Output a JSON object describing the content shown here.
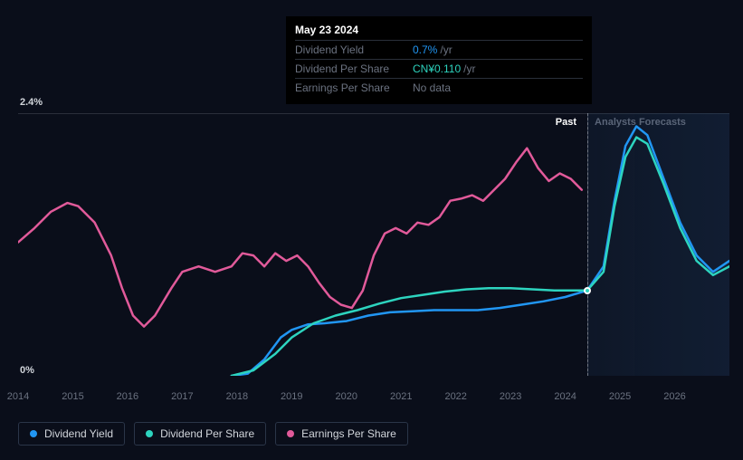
{
  "tooltip": {
    "date": "May 23 2024",
    "rows": [
      {
        "label": "Dividend Yield",
        "value": "0.7%",
        "unit": "/yr",
        "color": "#2196f3"
      },
      {
        "label": "Dividend Per Share",
        "value": "CN¥0.110",
        "unit": "/yr",
        "color": "#2dd4bf"
      },
      {
        "label": "Earnings Per Share",
        "value": "No data",
        "unit": "",
        "color": "#6b7280"
      }
    ]
  },
  "chart": {
    "type": "line",
    "background_color": "#0a0e1a",
    "grid_color": "#2a2f3a",
    "y_axis": {
      "min": 0,
      "max": 2.4,
      "labels": [
        "2.4%",
        "0%"
      ],
      "label_color": "#d1d5db",
      "label_fontsize": 11
    },
    "x_axis": {
      "min": 2014,
      "max": 2027,
      "ticks": [
        2014,
        2015,
        2016,
        2017,
        2018,
        2019,
        2020,
        2021,
        2022,
        2023,
        2024,
        2025,
        2026
      ],
      "label_color": "#6b7280",
      "label_fontsize": 11
    },
    "regions": {
      "past": {
        "label": "Past",
        "end_x": 2024.4,
        "label_color": "#ffffff"
      },
      "forecast": {
        "label": "Analysts Forecasts",
        "start_x": 2024.4,
        "label_color": "#5a6578",
        "fill": "rgba(30,58,95,0.28)"
      }
    },
    "hover": {
      "x": 2024.4,
      "dot_y": 0.78,
      "dot_color": "#2dd4bf"
    },
    "line_width": 2.5,
    "series": [
      {
        "name": "Dividend Yield",
        "color": "#2196f3",
        "points": [
          [
            2017.9,
            0
          ],
          [
            2018.2,
            0.02
          ],
          [
            2018.5,
            0.15
          ],
          [
            2018.8,
            0.35
          ],
          [
            2019.0,
            0.42
          ],
          [
            2019.3,
            0.47
          ],
          [
            2019.6,
            0.48
          ],
          [
            2020.0,
            0.5
          ],
          [
            2020.4,
            0.55
          ],
          [
            2020.8,
            0.58
          ],
          [
            2021.2,
            0.59
          ],
          [
            2021.6,
            0.6
          ],
          [
            2022.0,
            0.6
          ],
          [
            2022.4,
            0.6
          ],
          [
            2022.8,
            0.62
          ],
          [
            2023.2,
            0.65
          ],
          [
            2023.6,
            0.68
          ],
          [
            2024.0,
            0.72
          ],
          [
            2024.4,
            0.78
          ],
          [
            2024.7,
            1.0
          ],
          [
            2024.9,
            1.6
          ],
          [
            2025.1,
            2.1
          ],
          [
            2025.3,
            2.28
          ],
          [
            2025.5,
            2.2
          ],
          [
            2025.8,
            1.8
          ],
          [
            2026.1,
            1.4
          ],
          [
            2026.4,
            1.1
          ],
          [
            2026.7,
            0.95
          ],
          [
            2027.0,
            1.05
          ]
        ]
      },
      {
        "name": "Dividend Per Share",
        "color": "#2dd4bf",
        "points": [
          [
            2017.9,
            0
          ],
          [
            2018.3,
            0.05
          ],
          [
            2018.7,
            0.2
          ],
          [
            2019.0,
            0.35
          ],
          [
            2019.4,
            0.48
          ],
          [
            2019.8,
            0.55
          ],
          [
            2020.2,
            0.6
          ],
          [
            2020.6,
            0.66
          ],
          [
            2021.0,
            0.71
          ],
          [
            2021.4,
            0.74
          ],
          [
            2021.8,
            0.77
          ],
          [
            2022.2,
            0.79
          ],
          [
            2022.6,
            0.8
          ],
          [
            2023.0,
            0.8
          ],
          [
            2023.4,
            0.79
          ],
          [
            2023.8,
            0.78
          ],
          [
            2024.2,
            0.78
          ],
          [
            2024.4,
            0.78
          ],
          [
            2024.7,
            0.95
          ],
          [
            2024.9,
            1.55
          ],
          [
            2025.1,
            2.0
          ],
          [
            2025.3,
            2.18
          ],
          [
            2025.5,
            2.12
          ],
          [
            2025.8,
            1.75
          ],
          [
            2026.1,
            1.35
          ],
          [
            2026.4,
            1.05
          ],
          [
            2026.7,
            0.92
          ],
          [
            2027.0,
            1.0
          ]
        ]
      },
      {
        "name": "Earnings Per Share",
        "color": "#e15a9a",
        "points": [
          [
            2014.0,
            1.22
          ],
          [
            2014.3,
            1.35
          ],
          [
            2014.6,
            1.5
          ],
          [
            2014.9,
            1.58
          ],
          [
            2015.1,
            1.55
          ],
          [
            2015.4,
            1.4
          ],
          [
            2015.7,
            1.1
          ],
          [
            2015.9,
            0.8
          ],
          [
            2016.1,
            0.55
          ],
          [
            2016.3,
            0.45
          ],
          [
            2016.5,
            0.55
          ],
          [
            2016.8,
            0.8
          ],
          [
            2017.0,
            0.95
          ],
          [
            2017.3,
            1.0
          ],
          [
            2017.6,
            0.95
          ],
          [
            2017.9,
            1.0
          ],
          [
            2018.1,
            1.12
          ],
          [
            2018.3,
            1.1
          ],
          [
            2018.5,
            1.0
          ],
          [
            2018.7,
            1.12
          ],
          [
            2018.9,
            1.05
          ],
          [
            2019.1,
            1.1
          ],
          [
            2019.3,
            1.0
          ],
          [
            2019.5,
            0.85
          ],
          [
            2019.7,
            0.72
          ],
          [
            2019.9,
            0.65
          ],
          [
            2020.1,
            0.62
          ],
          [
            2020.3,
            0.78
          ],
          [
            2020.5,
            1.1
          ],
          [
            2020.7,
            1.3
          ],
          [
            2020.9,
            1.35
          ],
          [
            2021.1,
            1.3
          ],
          [
            2021.3,
            1.4
          ],
          [
            2021.5,
            1.38
          ],
          [
            2021.7,
            1.45
          ],
          [
            2021.9,
            1.6
          ],
          [
            2022.1,
            1.62
          ],
          [
            2022.3,
            1.65
          ],
          [
            2022.5,
            1.6
          ],
          [
            2022.7,
            1.7
          ],
          [
            2022.9,
            1.8
          ],
          [
            2023.1,
            1.95
          ],
          [
            2023.3,
            2.08
          ],
          [
            2023.5,
            1.9
          ],
          [
            2023.7,
            1.78
          ],
          [
            2023.9,
            1.85
          ],
          [
            2024.1,
            1.8
          ],
          [
            2024.3,
            1.7
          ]
        ]
      }
    ]
  },
  "legend": {
    "border_color": "#2a3548",
    "text_color": "#d1d5db",
    "fontsize": 12,
    "items": [
      {
        "label": "Dividend Yield",
        "color": "#2196f3"
      },
      {
        "label": "Dividend Per Share",
        "color": "#2dd4bf"
      },
      {
        "label": "Earnings Per Share",
        "color": "#e15a9a"
      }
    ]
  }
}
